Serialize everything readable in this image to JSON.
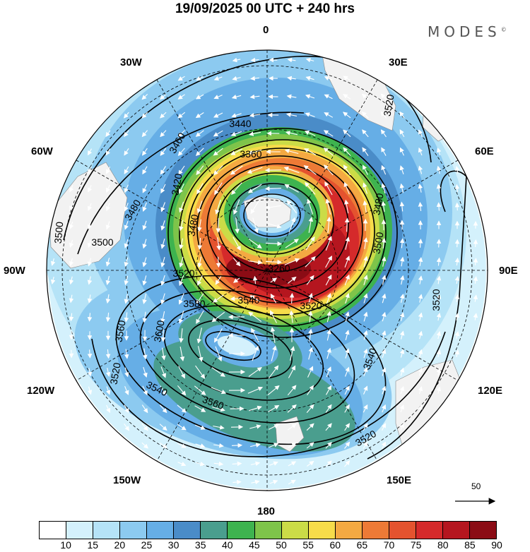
{
  "header": {
    "title": "19/09/2025  00 UTC  + 240 hrs",
    "brand": "MODES",
    "brand_mark": "©"
  },
  "map": {
    "projection": "polar stereographic (south pole)",
    "longitude_labels": {
      "top": "0",
      "top_right": "30E",
      "right_upper": "60E",
      "right": "90E",
      "right_lower": "120E",
      "bottom_right": "150E",
      "bottom": "180",
      "bottom_left": "150W",
      "left_lower": "120W",
      "left": "90W",
      "left_upper": "60W",
      "top_left": "30W"
    },
    "contour_labels": [
      {
        "text": "3440"
      },
      {
        "text": "3460"
      },
      {
        "text": "3360"
      },
      {
        "text": "3420"
      },
      {
        "text": "3480"
      },
      {
        "text": "3480"
      },
      {
        "text": "3480"
      },
      {
        "text": "3500"
      },
      {
        "text": "3500"
      },
      {
        "text": "3500"
      },
      {
        "text": "3520"
      },
      {
        "text": "3520"
      },
      {
        "text": "3520"
      },
      {
        "text": "3520"
      },
      {
        "text": "3520"
      },
      {
        "text": "3520"
      },
      {
        "text": "3540"
      },
      {
        "text": "3540"
      },
      {
        "text": "3540"
      },
      {
        "text": "3560"
      },
      {
        "text": "3560"
      },
      {
        "text": "3580"
      },
      {
        "text": "3600"
      },
      {
        "text": "3260"
      }
    ],
    "wind_reference": "50"
  },
  "colorbar": {
    "labels": [
      "10",
      "15",
      "20",
      "25",
      "30",
      "35",
      "40",
      "45",
      "50",
      "55",
      "60",
      "65",
      "70",
      "75",
      "80",
      "85",
      "90"
    ],
    "colors": [
      "#ffffff",
      "#d4f1fc",
      "#b5e3f7",
      "#8ccaf0",
      "#66aee6",
      "#4a8cc8",
      "#4a9e8e",
      "#3eb34f",
      "#7ec44a",
      "#cbdc47",
      "#f7dc4a",
      "#f4a942",
      "#ed7a36",
      "#e4532f",
      "#d52a2b",
      "#b5161f",
      "#8b0c15"
    ]
  },
  "colors": {
    "land": "#f2f2f2",
    "contour": "#000000",
    "arrow": "#ffffff"
  }
}
